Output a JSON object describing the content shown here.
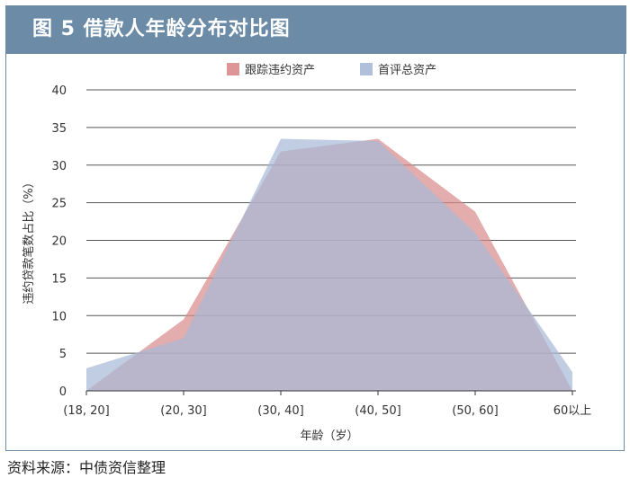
{
  "figure": {
    "title": "图 5    借款人年龄分布对比图",
    "source": "资料来源：中债资信整理"
  },
  "colors": {
    "header": "#6b8ba7",
    "series_default": "#d98a8a",
    "series_total": "#a7b8d6",
    "overlap": "#9a8496"
  },
  "chart_data": {
    "type": "area",
    "categories": [
      "(18, 20]",
      "(20, 30]",
      "(30, 40]",
      "(40, 50]",
      "(50, 60]",
      "60以上"
    ],
    "series": [
      {
        "name": "跟踪违约资产",
        "values": [
          0,
          9.5,
          31.8,
          33.5,
          23.8,
          0
        ]
      },
      {
        "name": "首评总资产",
        "values": [
          3,
          7,
          33.5,
          33.2,
          21,
          2.5
        ]
      }
    ],
    "ylabel": "违约贷款笔数占比（%）",
    "xlabel": "年龄（岁）",
    "ylim": [
      0,
      40
    ],
    "yticks": [
      0,
      5,
      10,
      15,
      20,
      25,
      30,
      35,
      40
    ],
    "grid": true,
    "legend_position": "top-center"
  }
}
